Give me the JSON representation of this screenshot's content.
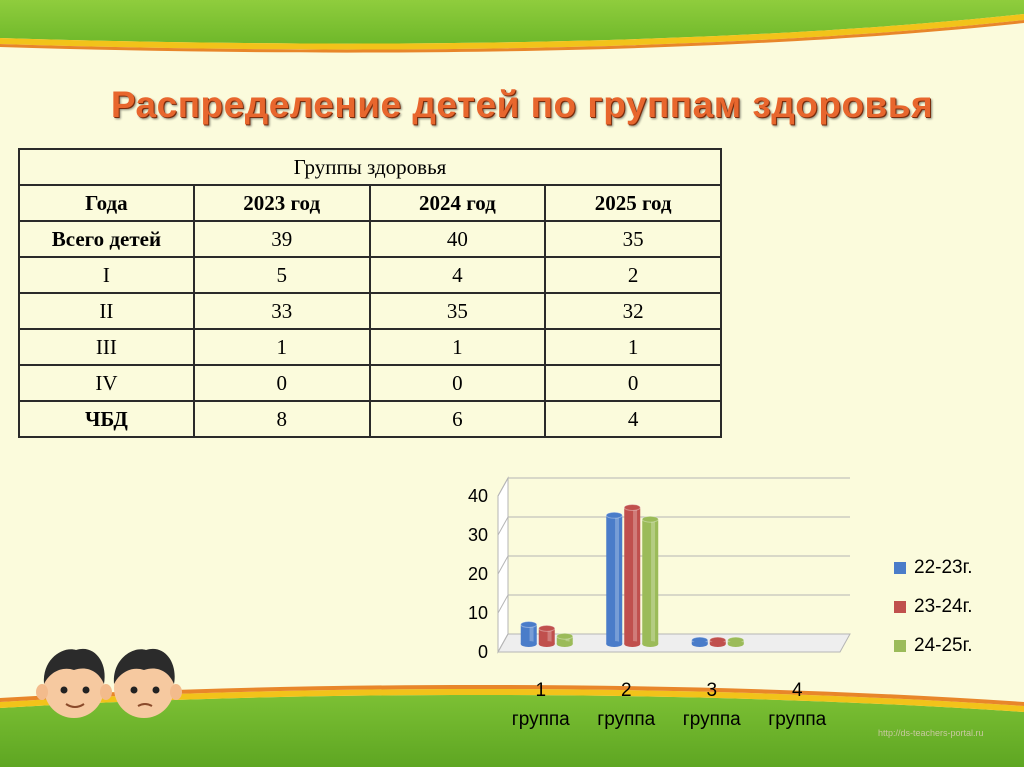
{
  "slide": {
    "title": "Распределение детей по группам здоровья",
    "watermark": "http://ds-teachers-portal.ru"
  },
  "table": {
    "header": "Группы здоровья",
    "columns": [
      "Года",
      "2023 год",
      "2024 год",
      "2025 год"
    ],
    "rows": [
      {
        "label": "Всего детей",
        "values": [
          "39",
          "40",
          "35"
        ]
      },
      {
        "label": "I",
        "values": [
          "5",
          "4",
          "2"
        ]
      },
      {
        "label": "II",
        "values": [
          "33",
          "35",
          "32"
        ]
      },
      {
        "label": "III",
        "values": [
          "1",
          "1",
          "1"
        ]
      },
      {
        "label": "IV",
        "values": [
          "0",
          "0",
          "0"
        ]
      },
      {
        "label": "ЧБД",
        "values": [
          "8",
          "6",
          "4"
        ]
      }
    ]
  },
  "chart_data": {
    "type": "bar",
    "categories": [
      "1\nгруппа",
      "2\nгруппа",
      "3\nгруппа",
      "4\nгруппа"
    ],
    "category_lines": [
      [
        "1",
        "группа"
      ],
      [
        "2",
        "группа"
      ],
      [
        "3",
        "группа"
      ],
      [
        "4",
        "группа"
      ]
    ],
    "series": [
      {
        "name": "22-23г.",
        "values": [
          5,
          33,
          1,
          0
        ],
        "color": "#4a7cc9"
      },
      {
        "name": "23-24г.",
        "values": [
          4,
          35,
          1,
          0
        ],
        "color": "#c0504d"
      },
      {
        "name": "24-25г.",
        "values": [
          2,
          32,
          1,
          0
        ],
        "color": "#9bbb59"
      }
    ],
    "ylim": [
      0,
      40
    ],
    "yticks": [
      "0",
      "10",
      "20",
      "30",
      "40"
    ],
    "grid": true,
    "legend_position": "right",
    "style": "3d-cylinder"
  }
}
